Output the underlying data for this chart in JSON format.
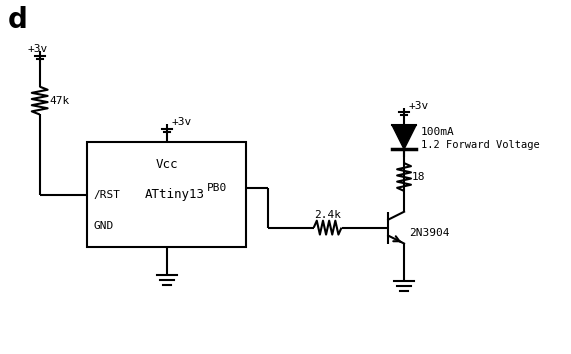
{
  "bg_color": "#ffffff",
  "line_color": "#000000",
  "lw": 1.5,
  "title": "d",
  "label_47k": "47k",
  "label_vcc1": "+3v",
  "label_vcc2": "+3v",
  "label_vcc3": "+3v",
  "label_Vcc": "Vcc",
  "label_ic": "ATtiny13",
  "label_rst": "/RST",
  "label_pb0": "PB0",
  "label_gnd": "GND",
  "label_100mA": "100mA",
  "label_fwd": "1.2 Forward Voltage",
  "label_18": "18",
  "label_2k4": "2.4k",
  "label_tr": "2N3904"
}
